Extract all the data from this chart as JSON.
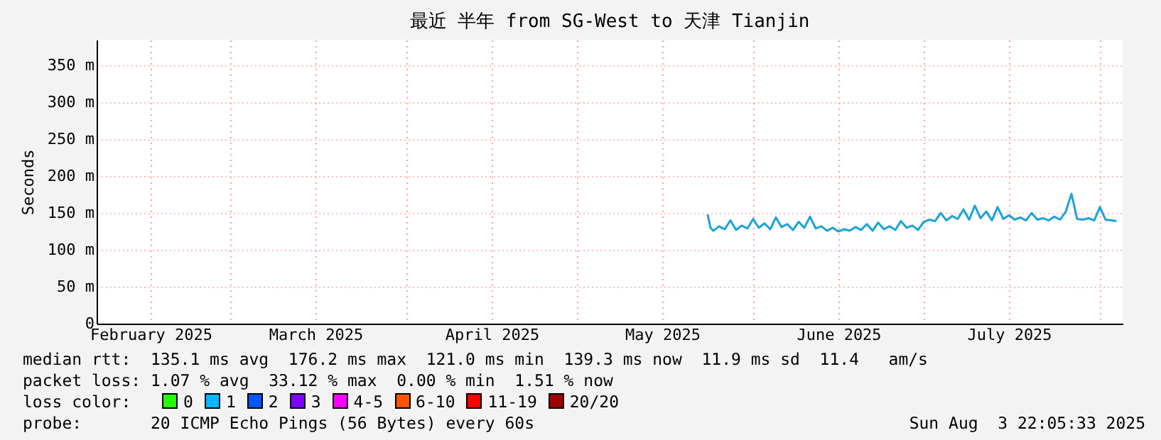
{
  "chart_data": {
    "type": "line",
    "title": "最近 半年 from SG-West to 天津 Tianjin",
    "ylabel": "Seconds",
    "x": [
      "2025-05-24T00:00",
      "2025-05-24T12:00",
      "2025-05-25",
      "2025-05-26",
      "2025-05-27",
      "2025-05-28",
      "2025-05-29",
      "2025-05-30",
      "2025-05-31",
      "2025-06-01",
      "2025-06-02",
      "2025-06-03",
      "2025-06-04",
      "2025-06-05",
      "2025-06-06",
      "2025-06-07",
      "2025-06-08",
      "2025-06-09",
      "2025-06-10",
      "2025-06-11",
      "2025-06-12",
      "2025-06-13",
      "2025-06-14",
      "2025-06-15",
      "2025-06-16",
      "2025-06-17",
      "2025-06-18",
      "2025-06-19",
      "2025-06-20",
      "2025-06-21",
      "2025-06-22",
      "2025-06-23",
      "2025-06-24",
      "2025-06-25",
      "2025-06-26",
      "2025-06-27",
      "2025-06-28",
      "2025-06-29",
      "2025-06-30",
      "2025-07-01",
      "2025-07-02",
      "2025-07-03",
      "2025-07-04",
      "2025-07-05",
      "2025-07-06",
      "2025-07-07",
      "2025-07-08",
      "2025-07-09",
      "2025-07-10",
      "2025-07-11",
      "2025-07-12",
      "2025-07-13",
      "2025-07-14",
      "2025-07-15",
      "2025-07-16",
      "2025-07-17",
      "2025-07-18",
      "2025-07-19",
      "2025-07-20",
      "2025-07-21",
      "2025-07-22",
      "2025-07-23",
      "2025-07-24",
      "2025-07-25",
      "2025-07-26",
      "2025-07-27",
      "2025-07-28",
      "2025-07-29",
      "2025-07-30",
      "2025-07-31",
      "2025-08-01",
      "2025-08-02",
      "2025-08-03",
      "2025-08-03T22:00"
    ],
    "series": [
      {
        "color": "#1aa3d9",
        "values": [
          148,
          130,
          126,
          132,
          128,
          140,
          127,
          133,
          129,
          142,
          130,
          136,
          128,
          144,
          131,
          135,
          127,
          138,
          130,
          145,
          129,
          132,
          126,
          130,
          125,
          128,
          126,
          131,
          127,
          135,
          126,
          137,
          128,
          132,
          127,
          139,
          130,
          133,
          127,
          138,
          141,
          139,
          150,
          140,
          146,
          142,
          155,
          141,
          160,
          143,
          152,
          140,
          158,
          142,
          147,
          141,
          144,
          140,
          150,
          141,
          143,
          140,
          145,
          141,
          152,
          176,
          142,
          141,
          143,
          140,
          158,
          141,
          140,
          139
        ]
      }
    ],
    "xlim": [
      "2025-02-05T12:00",
      "2025-08-05T00:00"
    ],
    "xticks": [
      {
        "value": "2025-02-15",
        "label": "February 2025"
      },
      {
        "value": "2025-03-01",
        "label": null
      },
      {
        "value": "2025-03-16",
        "label": "March 2025"
      },
      {
        "value": "2025-04-01",
        "label": null
      },
      {
        "value": "2025-04-16",
        "label": "April 2025"
      },
      {
        "value": "2025-05-01",
        "label": null
      },
      {
        "value": "2025-05-16",
        "label": "May 2025"
      },
      {
        "value": "2025-06-01",
        "label": null
      },
      {
        "value": "2025-06-16",
        "label": "June 2025"
      },
      {
        "value": "2025-07-01",
        "label": null
      },
      {
        "value": "2025-07-16",
        "label": "July 2025"
      },
      {
        "value": "2025-08-01",
        "label": null
      }
    ],
    "ylim": [
      0,
      385
    ],
    "yticks": [
      0,
      {
        "value": 50,
        "label": "50 m"
      },
      {
        "value": 100,
        "label": "100 m"
      },
      {
        "value": 150,
        "label": "150 m"
      },
      {
        "value": 200,
        "label": "200 m"
      },
      {
        "value": 250,
        "label": "250 m"
      },
      {
        "value": 300,
        "label": "300 m"
      },
      {
        "value": 350,
        "label": "350 m"
      }
    ],
    "grid": true,
    "legend": false,
    "marker": "none",
    "line_style": "solid",
    "annotations": [
      "median rtt:  135.1 ms avg  176.2 ms max  121.0 ms min  139.3 ms now  11.9 ms sd  11.4   am/s",
      "packet loss: 1.07 % avg  33.12 % max  0.00 % min  1.51 % now",
      "loss color:",
      "0",
      "1",
      "2",
      "3",
      "4-5",
      "6-10",
      "11-19",
      "20/20",
      "probe:       20 ICMP Echo Pings (56 Bytes) every 60s",
      "Sun Aug  3 22:05:33 2025"
    ]
  }
}
